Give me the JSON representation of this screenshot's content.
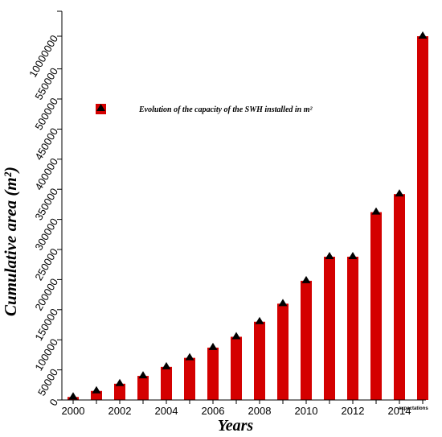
{
  "chart_data": {
    "type": "bar",
    "title": "",
    "xlabel": "Years",
    "ylabel": "Cumulative area (m²)",
    "x_tick_labels": [
      "2000",
      "2002",
      "2004",
      "2006",
      "2008",
      "2010",
      "2012",
      "2014"
    ],
    "x_note": "expectations",
    "y_tick_labels": [
      "0",
      "50000",
      "100000",
      "150000",
      "200000",
      "250000",
      "300000",
      "350000",
      "400000",
      "450000",
      "500000",
      "550000",
      "10000000"
    ],
    "categories": [
      "2000",
      "2001",
      "2002",
      "2003",
      "2004",
      "2005",
      "2006",
      "2007",
      "2008",
      "2009",
      "2010",
      "2011",
      "2012",
      "2013",
      "2014",
      "2015"
    ],
    "series": [
      {
        "name": "Evolution of the capacity of the SWH installed in m²",
        "values": [
          5000,
          15000,
          27000,
          40000,
          55000,
          70000,
          87000,
          105000,
          130000,
          160000,
          198000,
          238000,
          238000,
          312000,
          342000,
          10000000
        ]
      }
    ],
    "ylim": [
      0,
      10000000
    ],
    "y_axis_break": {
      "below": 550000,
      "above": 10000000
    },
    "bar_color": "#d40000",
    "marker": "black triangle",
    "grid": false,
    "legend_position": "upper-left"
  }
}
